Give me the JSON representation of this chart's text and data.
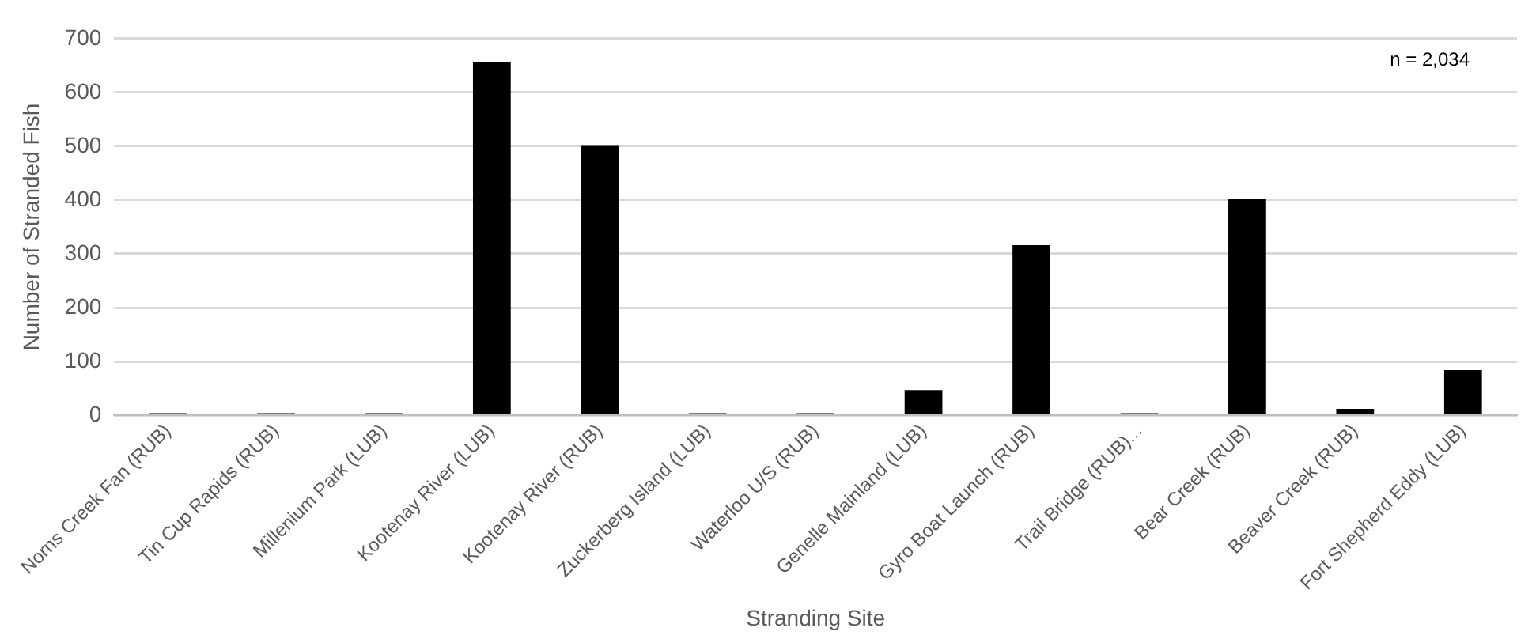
{
  "chart_data": {
    "type": "bar",
    "xlabel": "Stranding Site",
    "ylabel": "Number of Stranded Fish",
    "categories": [
      "Norns Creek Fan (RUB)",
      "Tin Cup Rapids (RUB)",
      "Millenium Park (LUB)",
      "Kootenay River (LUB)",
      "Kootenay River (RUB)",
      "Zuckerberg Island (LUB)",
      "Waterloo U/S (RUB)",
      "Genelle Mainland (LUB)",
      "Gyro Boat Launch (RUB)",
      "Trail Bridge (RUB)...",
      "Bear Creek (RUB)",
      "Beaver Creek (RUB)",
      "Fort Shepherd Eddy (LUB)"
    ],
    "values": [
      4,
      4,
      4,
      657,
      502,
      4,
      4,
      47,
      316,
      4,
      402,
      12,
      84
    ],
    "color": "#000000",
    "ylim": [
      0,
      700
    ],
    "yticks": [
      0,
      100,
      200,
      300,
      400,
      500,
      600,
      700
    ],
    "grid": "y",
    "legend": false,
    "annotations": [
      "n = 2,034"
    ]
  }
}
